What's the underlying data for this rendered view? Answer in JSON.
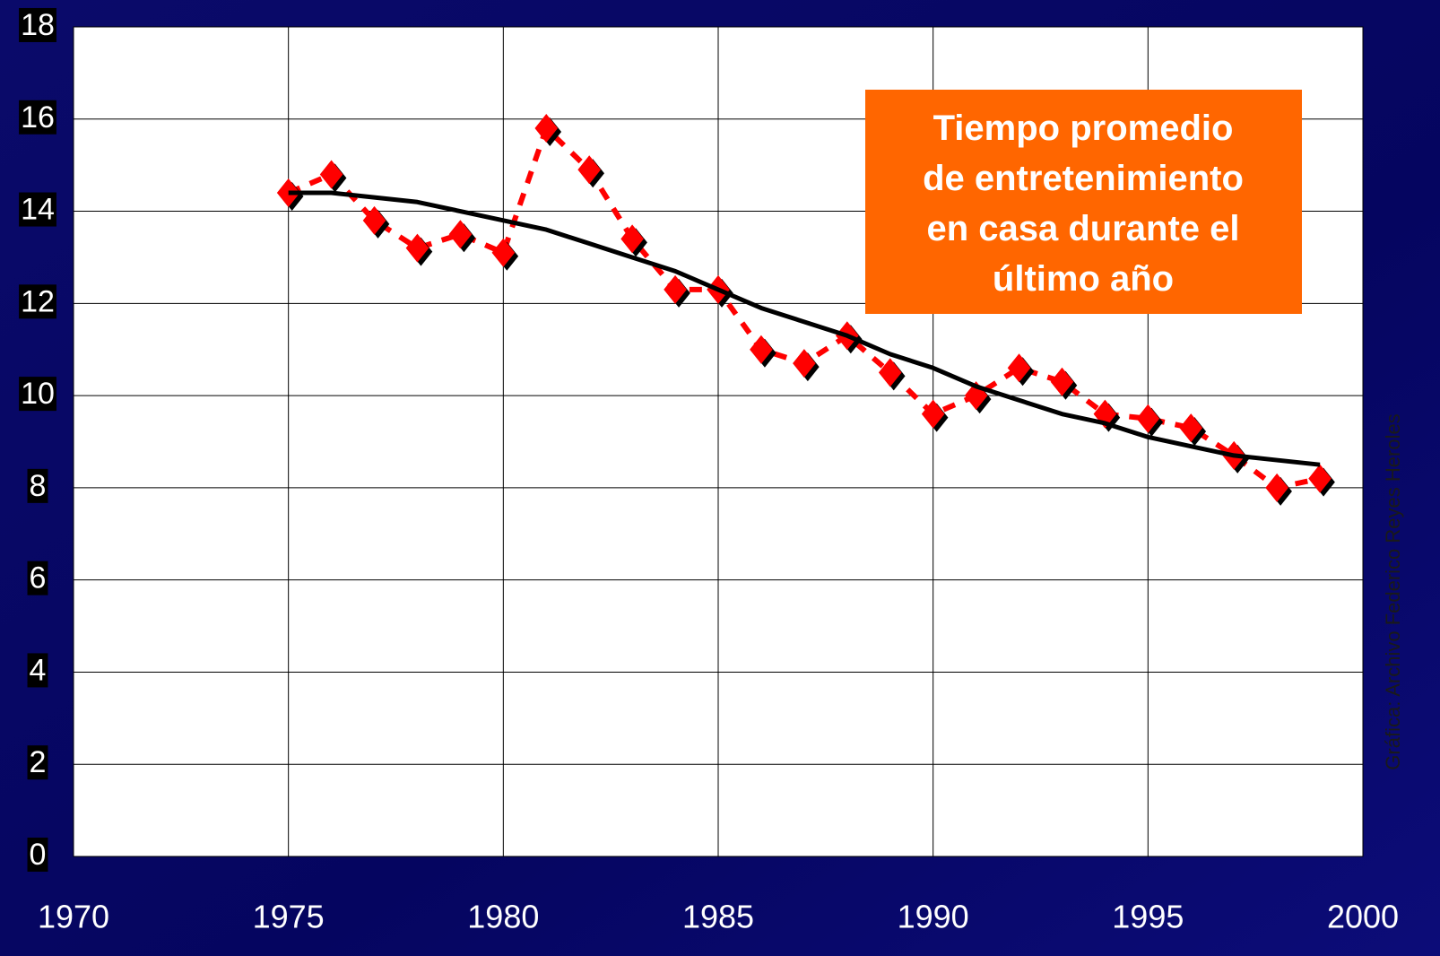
{
  "chart_data": {
    "type": "line",
    "x": [
      1975,
      1976,
      1977,
      1978,
      1979,
      1980,
      1981,
      1982,
      1983,
      1984,
      1985,
      1986,
      1987,
      1988,
      1989,
      1990,
      1991,
      1992,
      1993,
      1994,
      1995,
      1996,
      1997,
      1998,
      1999
    ],
    "series": [
      {
        "color": "#ff0000",
        "dashed": true,
        "markers": true,
        "values": [
          14.4,
          14.8,
          13.8,
          13.2,
          13.5,
          13.1,
          15.8,
          14.9,
          13.4,
          12.3,
          12.3,
          11.0,
          10.7,
          11.3,
          10.5,
          9.6,
          10.0,
          10.6,
          10.3,
          9.6,
          9.5,
          9.3,
          8.7,
          8.0,
          8.2
        ]
      },
      {
        "color": "#000000",
        "dashed": false,
        "markers": false,
        "values": [
          14.4,
          14.4,
          14.3,
          14.2,
          14.0,
          13.8,
          13.6,
          13.3,
          13.0,
          12.7,
          12.3,
          11.9,
          11.6,
          11.3,
          10.9,
          10.6,
          10.2,
          9.9,
          9.6,
          9.4,
          9.1,
          8.9,
          8.7,
          8.6,
          8.5
        ]
      }
    ],
    "xlim": [
      1970,
      2000
    ],
    "xticks": [
      1970,
      1975,
      1980,
      1985,
      1990,
      1995,
      2000
    ],
    "ylim": [
      0,
      18
    ],
    "yticks": [
      0,
      2,
      4,
      6,
      8,
      10,
      12,
      14,
      16,
      18
    ],
    "grid": true,
    "annotation": {
      "lines": [
        "Tiempo promedio",
        "de entretenimiento",
        "en casa durante el",
        "último año"
      ],
      "color": "#ff6600"
    },
    "source": "Gráfica: Archivo Federico Reyes Heroles"
  }
}
